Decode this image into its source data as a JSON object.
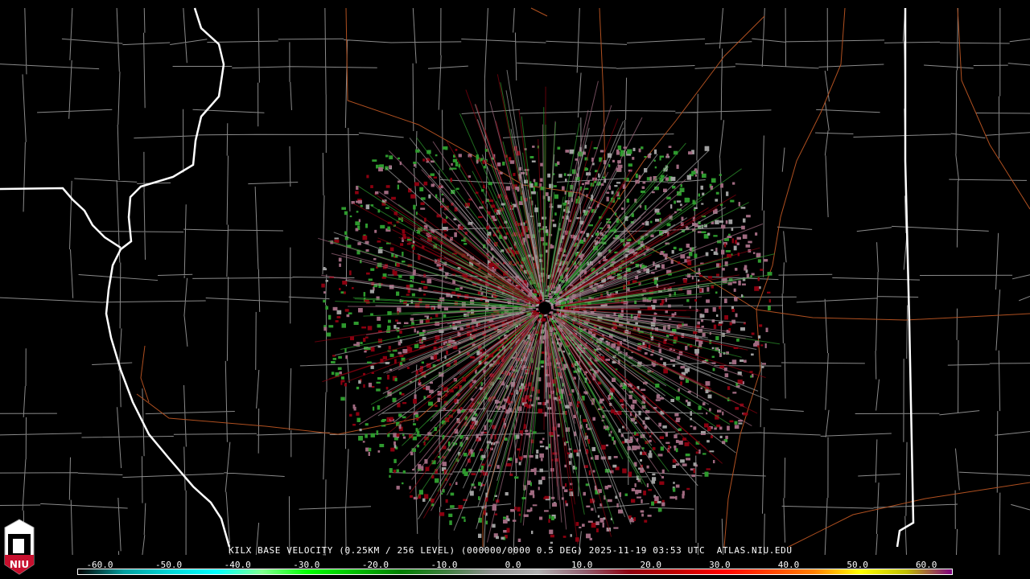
{
  "product": {
    "title": "KILX BASE VELOCITY (0.25KM / 256 LEVEL) (000000/0000 0.5 DEG) 2025-11-19 03:53 UTC  ATLAS.NIU.EDU",
    "radar_site": "KILX",
    "date": "2025-11-19",
    "time": "03:53 UTC",
    "elevation": "0.5 DEG",
    "source": "ATLAS.NIU.EDU"
  },
  "logo": {
    "text": "NIU"
  },
  "colorbar": {
    "ticks": [
      "-60.0",
      "-50.0",
      "-40.0",
      "-30.0",
      "-20.0",
      "-10.0",
      "0.0",
      "10.0",
      "20.0",
      "30.0",
      "40.0",
      "50.0",
      "60.0"
    ],
    "colors": [
      "#000000",
      "#00a0a0",
      "#00d8d8",
      "#00ffff",
      "#80ff90",
      "#00ff00",
      "#00c000",
      "#008000",
      "#408040",
      "#909090",
      "#b0b0b0",
      "#906070",
      "#900010",
      "#c00000",
      "#ff0000",
      "#ff4000",
      "#ff8000",
      "#ffff00",
      "#c0c000",
      "#800080"
    ]
  },
  "map_colors": {
    "county": "#8a8a8a",
    "state": "#ffffff",
    "highway": "#b05020",
    "inbound": "#2e9a2e",
    "outbound": "#8b0010",
    "neutral_pink": "#a06a80",
    "near_zero": "#a0a0a0"
  }
}
